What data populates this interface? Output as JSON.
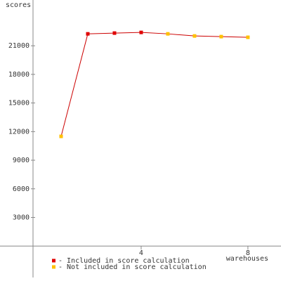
{
  "chart_data": {
    "type": "line",
    "y_label": "scores",
    "x_label": "warehouses",
    "x": [
      1,
      2,
      3,
      4,
      5,
      6,
      7,
      8
    ],
    "series": [
      {
        "name": "- Included in score calculation",
        "color": "#e00000",
        "values": [
          null,
          22250,
          22330,
          22400,
          null,
          null,
          null,
          null
        ]
      },
      {
        "name": "- Not included in score calculation",
        "color": "#ffc000",
        "values": [
          11500,
          null,
          null,
          null,
          22250,
          22030,
          21960,
          21890
        ]
      }
    ],
    "line_color": "#cc0000",
    "xlim": [
      -1.29,
      9.24
    ],
    "xticks": [
      4,
      8
    ],
    "ylim": [
      -3300,
      25800
    ],
    "yticks": [
      3000,
      6000,
      9000,
      12000,
      15000,
      18000,
      21000
    ]
  }
}
